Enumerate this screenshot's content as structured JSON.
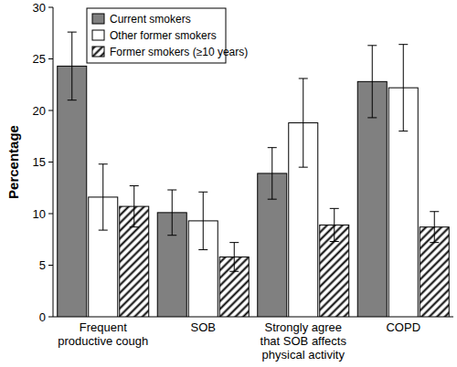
{
  "chart_data": {
    "type": "bar",
    "y_label": "Percentage",
    "categories": [
      "Frequent productive cough",
      "SOB",
      "Strongly agree that SOB affects physical activity",
      "COPD"
    ],
    "series": [
      {
        "name": "Current smokers",
        "color": "#808080",
        "values": [
          24.3,
          10.1,
          13.9,
          22.8
        ],
        "errors": [
          3.3,
          2.2,
          2.5,
          3.5
        ]
      },
      {
        "name": "Other former smokers",
        "color": "#ffffff",
        "values": [
          11.6,
          9.3,
          18.8,
          22.2
        ],
        "errors": [
          3.2,
          2.8,
          4.3,
          4.2
        ]
      },
      {
        "name": "Former smokers (≥10 years)",
        "color": "#000000",
        "marker": "hatch",
        "values": [
          10.7,
          5.8,
          8.9,
          8.7
        ],
        "errors": [
          2.0,
          1.4,
          1.6,
          1.5
        ]
      }
    ],
    "ylim": [
      0,
      30
    ],
    "yticks": [
      0,
      5,
      10,
      15,
      20,
      25,
      30
    ],
    "legend": "upper left",
    "grid": false
  }
}
